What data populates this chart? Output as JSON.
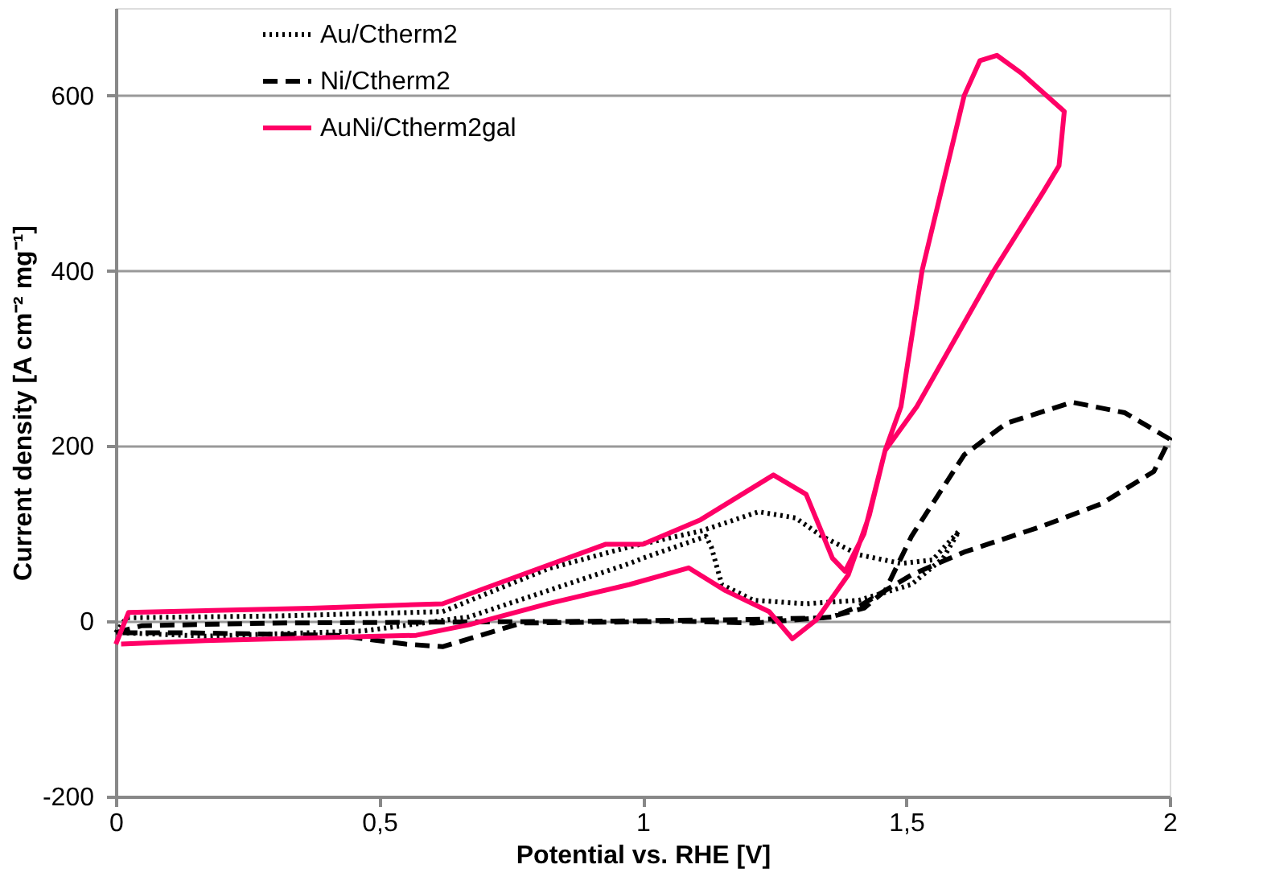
{
  "chart_data": {
    "type": "line",
    "xlabel": "Potential vs. RHE [V]",
    "ylabel": "Current density [A cm⁻² mg⁻¹]",
    "xlim": [
      0,
      2
    ],
    "xticks": [
      0,
      {
        "value": 0.5,
        "label": "0,5"
      },
      1,
      {
        "value": 1.5,
        "label": "1,5"
      },
      2
    ],
    "ylim": [
      -200,
      700
    ],
    "yticks": [
      -200,
      0,
      200,
      400,
      600
    ],
    "grid": "y",
    "legend": "top",
    "marker": "none",
    "series": [
      {
        "name": "Au/Ctherm2",
        "color": "#000000",
        "line_style": "dotted",
        "x": [
          0,
          0.02,
          0.3,
          0.62,
          0.82,
          0.975,
          1.11,
          1.22,
          1.29,
          1.34,
          1.41,
          1.49,
          1.55,
          1.6,
          1.57,
          1.51,
          1.41,
          1.31,
          1.21,
          1.15,
          1.13,
          1.12,
          1.0,
          0.975,
          0.82,
          0.67,
          0.47,
          0.17,
          0.01
        ],
        "values": [
          -13,
          4,
          6,
          11,
          60,
          85,
          103,
          125,
          118,
          97,
          76,
          66,
          70,
          103,
          72,
          42,
          24,
          20,
          24,
          42,
          85,
          97,
          72,
          66,
          35,
          5,
          -11,
          -17,
          -13
        ]
      },
      {
        "name": "Ni/Ctherm2",
        "color": "#000000",
        "line_style": "dashed",
        "x": [
          0,
          0.05,
          0.3,
          0.6,
          0.9,
          1.2,
          1.35,
          1.42,
          1.46,
          1.51,
          1.61,
          1.69,
          1.815,
          1.915,
          2.0,
          1.97,
          1.87,
          1.76,
          1.61,
          1.51,
          1.41,
          1.36,
          1.21,
          1.08,
          0.77,
          0.62,
          0.55,
          0.42,
          0.12,
          0.01
        ],
        "values": [
          -13,
          -5,
          -2,
          -1,
          0,
          2,
          4,
          15,
          35,
          97,
          190,
          226,
          250,
          238,
          208,
          171,
          134,
          109,
          79,
          53,
          17,
          5,
          -2,
          0,
          -2,
          -29,
          -26,
          -16,
          -13,
          -13
        ]
      },
      {
        "name": "AuNi/Ctherm2gal",
        "color": "#ff0066",
        "line_style": "solid",
        "x": [
          0,
          0.024,
          0.37,
          0.62,
          0.77,
          0.93,
          1.0,
          1.11,
          1.248,
          1.31,
          1.36,
          1.384,
          1.42,
          1.46,
          1.49,
          1.53,
          1.57,
          1.61,
          1.64,
          1.672,
          1.72,
          1.8,
          1.79,
          1.76,
          1.663,
          1.52,
          1.46,
          1.43,
          1.39,
          1.33,
          1.284,
          1.24,
          1.157,
          1.087,
          0.975,
          0.82,
          0.67,
          0.57,
          0.17,
          0.01
        ],
        "values": [
          -26,
          10,
          15,
          20,
          53,
          88,
          88,
          116,
          167,
          145,
          72,
          57,
          100,
          195,
          245,
          400,
          500,
          600,
          640,
          646,
          625,
          582,
          520,
          490,
          397,
          245,
          195,
          121,
          53,
          2,
          -20,
          11,
          35,
          61,
          42,
          20,
          -4,
          -16,
          -22,
          -26
        ]
      }
    ]
  }
}
